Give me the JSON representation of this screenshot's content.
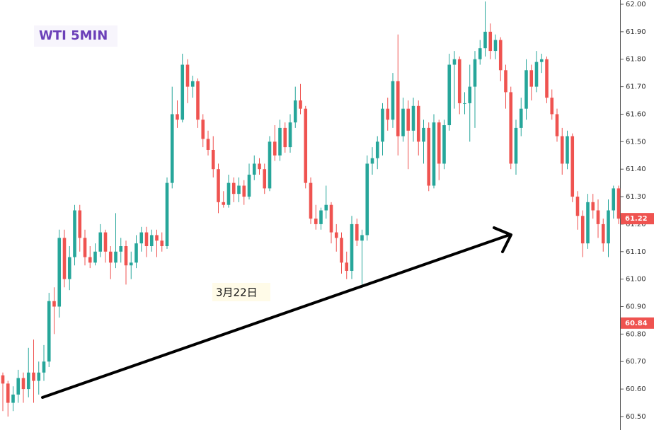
{
  "chart_data": {
    "type": "candlestick",
    "title": "WTI 5MIN",
    "annotation": "3月22日",
    "up_color": "#26a69a",
    "down_color": "#ef5350",
    "marker_color": "#ef5350",
    "ylim": [
      60.485,
      62.0
    ],
    "yticks": [
      {
        "value": 60.5,
        "label": "60.50"
      },
      {
        "value": 60.6,
        "label": "60.60"
      },
      {
        "value": 60.7,
        "label": "60.70"
      },
      {
        "value": 60.8,
        "label": "60.80"
      },
      {
        "value": 60.9,
        "label": "60.90"
      },
      {
        "value": 61.0,
        "label": "61.00"
      },
      {
        "value": 61.1,
        "label": "61.10"
      },
      {
        "value": 61.2,
        "label": "61.20"
      },
      {
        "value": 61.3,
        "label": "61.30"
      },
      {
        "value": 61.4,
        "label": "61.40"
      },
      {
        "value": 61.5,
        "label": "61.50"
      },
      {
        "value": 61.6,
        "label": "61.60"
      },
      {
        "value": 61.7,
        "label": "61.70"
      },
      {
        "value": 61.8,
        "label": "61.80"
      },
      {
        "value": 61.9,
        "label": "61.90"
      },
      {
        "value": 62.0,
        "label": "62.00"
      }
    ],
    "price_markers": [
      {
        "value": 61.22,
        "label": "61.22"
      },
      {
        "value": 60.84,
        "label": "60.84"
      }
    ],
    "ohlc": [
      [
        60.65,
        60.66,
        60.52,
        60.62
      ],
      [
        60.62,
        60.63,
        60.5,
        60.55
      ],
      [
        60.55,
        60.61,
        60.52,
        60.58
      ],
      [
        60.58,
        60.67,
        60.55,
        60.64
      ],
      [
        60.64,
        60.66,
        60.55,
        60.6
      ],
      [
        60.6,
        60.75,
        60.57,
        60.66
      ],
      [
        60.66,
        60.78,
        60.55,
        60.63
      ],
      [
        60.63,
        60.7,
        60.58,
        60.66
      ],
      [
        60.66,
        60.76,
        60.63,
        60.7
      ],
      [
        60.7,
        60.95,
        60.68,
        60.92
      ],
      [
        60.92,
        60.97,
        60.8,
        60.9
      ],
      [
        60.9,
        61.18,
        60.86,
        61.15
      ],
      [
        61.15,
        61.18,
        60.97,
        61.0
      ],
      [
        61.0,
        61.12,
        60.96,
        61.08
      ],
      [
        61.08,
        61.27,
        61.05,
        61.25
      ],
      [
        61.25,
        61.27,
        61.1,
        61.15
      ],
      [
        61.15,
        61.18,
        61.05,
        61.08
      ],
      [
        61.08,
        61.12,
        61.04,
        61.06
      ],
      [
        61.06,
        61.13,
        61.05,
        61.1
      ],
      [
        61.1,
        61.2,
        61.08,
        61.17
      ],
      [
        61.17,
        61.18,
        61.06,
        61.1
      ],
      [
        61.1,
        61.12,
        61.0,
        61.06
      ],
      [
        61.06,
        61.24,
        61.04,
        61.1
      ],
      [
        61.1,
        61.15,
        61.06,
        61.12
      ],
      [
        61.12,
        61.14,
        60.98,
        61.05
      ],
      [
        61.05,
        61.1,
        61.0,
        61.06
      ],
      [
        61.06,
        61.16,
        61.04,
        61.13
      ],
      [
        61.13,
        61.19,
        61.1,
        61.17
      ],
      [
        61.17,
        61.19,
        61.08,
        61.12
      ],
      [
        61.12,
        61.18,
        61.1,
        61.16
      ],
      [
        61.16,
        61.18,
        61.08,
        61.14
      ],
      [
        61.14,
        61.17,
        61.1,
        61.12
      ],
      [
        61.12,
        61.37,
        61.11,
        61.35
      ],
      [
        61.35,
        61.7,
        61.33,
        61.6
      ],
      [
        61.6,
        61.65,
        61.55,
        61.58
      ],
      [
        61.58,
        61.82,
        61.57,
        61.78
      ],
      [
        61.78,
        61.8,
        61.64,
        61.7
      ],
      [
        61.7,
        61.74,
        61.66,
        61.72
      ],
      [
        61.72,
        61.73,
        61.55,
        61.58
      ],
      [
        61.58,
        61.6,
        61.48,
        61.51
      ],
      [
        61.51,
        61.54,
        61.45,
        61.47
      ],
      [
        61.47,
        61.52,
        61.37,
        61.4
      ],
      [
        61.4,
        61.42,
        61.24,
        61.28
      ],
      [
        61.28,
        61.32,
        61.26,
        61.27
      ],
      [
        61.27,
        61.38,
        61.26,
        61.35
      ],
      [
        61.35,
        61.37,
        61.28,
        61.31
      ],
      [
        61.31,
        61.37,
        61.28,
        61.34
      ],
      [
        61.34,
        61.36,
        61.27,
        61.3
      ],
      [
        61.3,
        61.42,
        61.29,
        61.38
      ],
      [
        61.38,
        61.45,
        61.36,
        61.42
      ],
      [
        61.42,
        61.44,
        61.38,
        61.4
      ],
      [
        61.4,
        61.42,
        61.31,
        61.33
      ],
      [
        61.33,
        61.52,
        61.32,
        61.5
      ],
      [
        61.5,
        61.56,
        61.43,
        61.45
      ],
      [
        61.45,
        61.58,
        61.43,
        61.55
      ],
      [
        61.55,
        61.57,
        61.46,
        61.48
      ],
      [
        61.48,
        61.6,
        61.46,
        61.57
      ],
      [
        61.57,
        61.7,
        61.55,
        61.65
      ],
      [
        61.65,
        61.71,
        61.6,
        61.62
      ],
      [
        61.62,
        61.63,
        61.33,
        61.35
      ],
      [
        61.35,
        61.37,
        61.2,
        61.22
      ],
      [
        61.22,
        61.27,
        61.18,
        61.2
      ],
      [
        61.2,
        61.26,
        61.18,
        61.25
      ],
      [
        61.25,
        61.34,
        61.22,
        61.27
      ],
      [
        61.27,
        61.28,
        61.13,
        61.17
      ],
      [
        61.17,
        61.2,
        61.1,
        61.15
      ],
      [
        61.15,
        61.17,
        61.02,
        61.06
      ],
      [
        61.06,
        61.1,
        61.0,
        61.03
      ],
      [
        61.03,
        61.23,
        61.0,
        61.2
      ],
      [
        61.2,
        61.22,
        61.12,
        61.14
      ],
      [
        61.14,
        61.18,
        60.98,
        61.16
      ],
      [
        61.16,
        61.45,
        61.14,
        61.42
      ],
      [
        61.42,
        61.48,
        61.38,
        61.44
      ],
      [
        61.44,
        61.52,
        61.4,
        61.5
      ],
      [
        61.5,
        61.64,
        61.45,
        61.62
      ],
      [
        61.62,
        61.66,
        61.54,
        61.58
      ],
      [
        61.58,
        61.75,
        61.55,
        61.72
      ],
      [
        61.72,
        61.89,
        61.45,
        61.52
      ],
      [
        61.52,
        61.66,
        61.5,
        61.62
      ],
      [
        61.62,
        61.65,
        61.4,
        61.54
      ],
      [
        61.54,
        61.66,
        61.5,
        61.63
      ],
      [
        61.63,
        61.65,
        61.45,
        61.5
      ],
      [
        61.5,
        61.58,
        61.42,
        61.55
      ],
      [
        61.55,
        61.57,
        61.32,
        61.34
      ],
      [
        61.34,
        61.6,
        61.33,
        61.57
      ],
      [
        61.57,
        61.58,
        61.36,
        61.42
      ],
      [
        61.42,
        61.58,
        61.4,
        61.56
      ],
      [
        61.56,
        61.82,
        61.54,
        61.78
      ],
      [
        61.78,
        61.83,
        61.62,
        61.8
      ],
      [
        61.8,
        61.81,
        61.6,
        61.64
      ],
      [
        61.64,
        61.68,
        61.6,
        61.64
      ],
      [
        61.64,
        61.78,
        61.5,
        61.7
      ],
      [
        61.7,
        61.83,
        61.55,
        61.8
      ],
      [
        61.8,
        61.87,
        61.78,
        61.84
      ],
      [
        61.84,
        62.01,
        61.81,
        61.9
      ],
      [
        61.9,
        61.93,
        61.8,
        61.83
      ],
      [
        61.83,
        61.89,
        61.8,
        61.87
      ],
      [
        61.87,
        61.88,
        61.72,
        61.76
      ],
      [
        61.76,
        61.78,
        61.62,
        61.68
      ],
      [
        61.68,
        61.7,
        61.4,
        61.42
      ],
      [
        61.42,
        61.58,
        61.38,
        61.55
      ],
      [
        61.55,
        61.66,
        61.52,
        61.62
      ],
      [
        61.62,
        61.8,
        61.58,
        61.76
      ],
      [
        61.76,
        61.78,
        61.65,
        61.7
      ],
      [
        61.7,
        61.83,
        61.68,
        61.79
      ],
      [
        61.79,
        61.82,
        61.75,
        61.8
      ],
      [
        61.8,
        61.81,
        61.64,
        61.66
      ],
      [
        61.66,
        61.69,
        61.58,
        61.6
      ],
      [
        61.6,
        61.62,
        61.5,
        61.52
      ],
      [
        61.52,
        61.55,
        61.38,
        61.42
      ],
      [
        61.42,
        61.54,
        61.4,
        61.52
      ],
      [
        61.52,
        61.53,
        61.28,
        61.3
      ],
      [
        61.3,
        61.32,
        61.18,
        61.23
      ],
      [
        61.23,
        61.25,
        61.08,
        61.13
      ],
      [
        61.13,
        61.31,
        61.11,
        61.28
      ],
      [
        61.28,
        61.31,
        61.22,
        61.25
      ],
      [
        61.25,
        61.29,
        61.15,
        61.2
      ],
      [
        61.2,
        61.22,
        61.1,
        61.13
      ],
      [
        61.13,
        61.29,
        61.08,
        61.25
      ],
      [
        61.25,
        61.34,
        61.22,
        61.33
      ],
      [
        61.33,
        61.34,
        61.2,
        61.22
      ]
    ]
  }
}
